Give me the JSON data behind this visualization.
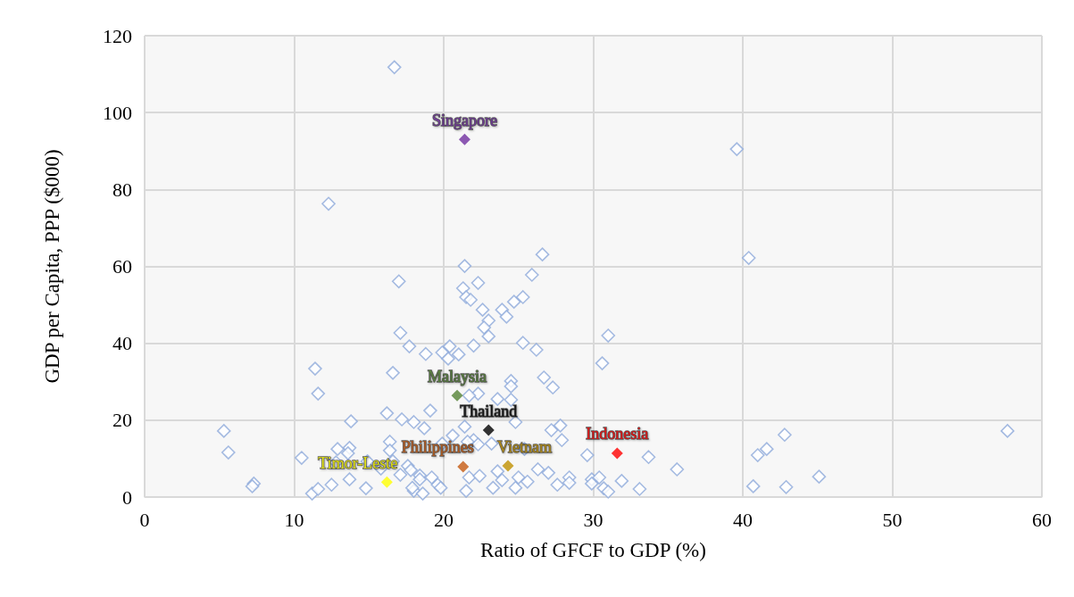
{
  "chart_data": {
    "type": "scatter",
    "xlabel": "Ratio of GFCF to GDP (%)",
    "ylabel": "GDP per Capita, PPP ($000)",
    "xlim": [
      0,
      60
    ],
    "xticks": [
      0,
      10,
      20,
      30,
      40,
      50,
      60
    ],
    "ylim": [
      0,
      120
    ],
    "yticks": [
      0,
      20,
      40,
      60,
      80,
      100,
      120
    ],
    "grid": true,
    "marker": "diamond",
    "series": [
      {
        "color": "#8eaadb",
        "x": [
          16.7,
          12.3,
          39.6,
          40.4,
          21.4,
          26.6,
          25.9,
          17.0,
          22.3,
          21.3,
          21.5,
          21.8,
          25.3,
          24.7,
          23.9,
          22.6,
          24.2,
          23.0,
          22.7,
          23.0,
          17.1,
          31.0,
          30.6,
          25.3,
          26.2,
          22.0,
          17.7,
          18.8,
          20.4,
          21.0,
          19.9,
          20.3,
          11.4,
          16.6,
          11.6,
          26.7,
          27.3,
          24.5,
          24.5,
          22.3,
          21.7,
          23.6,
          24.5,
          19.1,
          16.2,
          17.2,
          18.0,
          13.8,
          18.7,
          21.4,
          20.6,
          24.8,
          27.2,
          27.8,
          27.9,
          22.0,
          22.3,
          19.9,
          23.2,
          25.4,
          5.3,
          5.6,
          7.3,
          7.2,
          10.5,
          12.9,
          13.7,
          13.6,
          16.4,
          16.4,
          12.8,
          14.9,
          15.8,
          16.6,
          17.6,
          17.1,
          18.4,
          11.2,
          11.6,
          12.5,
          13.7,
          14.8,
          18.0,
          18.6,
          19.6,
          18.4,
          19.2,
          19.8,
          17.8,
          17.9,
          21.6,
          21.5,
          21.7,
          22.4,
          23.6,
          23.9,
          23.3,
          24.8,
          25.0,
          25.6,
          26.3,
          27.0,
          27.6,
          28.4,
          28.4,
          29.9,
          29.9,
          30.4,
          30.7,
          31.0,
          31.9,
          29.6,
          33.7,
          35.6,
          33.1,
          42.8,
          41.6,
          41.0,
          45.1,
          40.7,
          42.9,
          57.7
        ],
        "values": [
          111.8,
          76.3,
          90.5,
          62.2,
          60.1,
          63.1,
          57.8,
          56.1,
          55.7,
          54.3,
          52.0,
          51.3,
          52.0,
          50.8,
          48.7,
          48.7,
          46.9,
          45.9,
          44.1,
          41.8,
          42.7,
          42.0,
          34.8,
          40.1,
          38.3,
          39.4,
          39.2,
          37.2,
          39.2,
          37.1,
          37.6,
          36.0,
          33.4,
          32.3,
          26.9,
          31.1,
          28.5,
          30.2,
          28.8,
          26.9,
          26.4,
          25.5,
          25.3,
          22.5,
          21.8,
          20.2,
          19.5,
          19.7,
          17.9,
          18.3,
          16.0,
          19.5,
          17.4,
          18.6,
          14.8,
          14.8,
          13.7,
          13.9,
          13.9,
          12.5,
          17.2,
          11.6,
          3.5,
          2.8,
          10.2,
          12.5,
          12.8,
          11.4,
          14.4,
          12.1,
          9.0,
          9.3,
          7.4,
          9.3,
          8.1,
          5.8,
          5.6,
          0.9,
          2.1,
          3.2,
          4.6,
          2.3,
          1.6,
          0.9,
          3.2,
          4.6,
          5.1,
          2.4,
          7.0,
          2.4,
          14.4,
          1.6,
          5.1,
          5.5,
          6.7,
          4.4,
          2.4,
          2.4,
          5.1,
          4.0,
          7.2,
          6.3,
          3.2,
          5.1,
          3.7,
          4.6,
          3.5,
          5.1,
          2.3,
          1.4,
          4.2,
          10.9,
          10.4,
          7.2,
          2.1,
          16.2,
          12.5,
          10.9,
          5.3,
          2.8,
          2.6,
          17.2
        ]
      },
      {
        "name": "Singapore",
        "color": "#7030a0",
        "x": [
          21.4
        ],
        "values": [
          93.0
        ]
      },
      {
        "name": "Malaysia",
        "color": "#548235",
        "x": [
          20.9
        ],
        "values": [
          26.4
        ]
      },
      {
        "name": "Thailand",
        "color": "#000000",
        "x": [
          23.0
        ],
        "values": [
          17.4
        ]
      },
      {
        "name": "Indonesia",
        "color": "#ff0000",
        "x": [
          31.6
        ],
        "values": [
          11.4
        ]
      },
      {
        "name": "Vietnam",
        "color": "#bf9000",
        "x": [
          24.3
        ],
        "values": [
          8.1
        ]
      },
      {
        "name": "Philippines",
        "color": "#c55a11",
        "x": [
          21.3
        ],
        "values": [
          7.9
        ]
      },
      {
        "name": "Timor-Leste",
        "color": "#ffff00",
        "x": [
          16.2
        ],
        "values": [
          3.9
        ]
      }
    ]
  }
}
